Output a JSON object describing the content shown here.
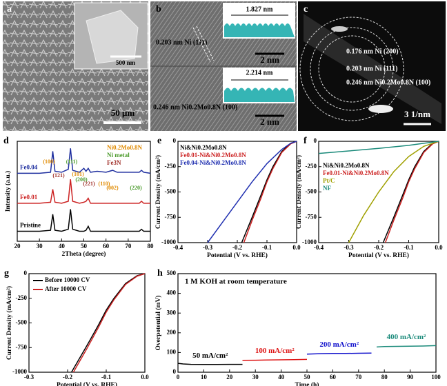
{
  "images": [
    {
      "label": "a",
      "texts": [
        "500 nm",
        "50 μm"
      ]
    },
    {
      "label": "b",
      "texts": [
        "1.827 nm",
        "0.203 nm Ni (111)",
        "2 nm",
        "2.214 nm",
        "0.246 nm Ni0.2Mo0.8N (100)",
        "2 nm"
      ]
    },
    {
      "label": "c",
      "texts": [
        "0.176 nm Ni (200)",
        "0.203 nm Ni (111)",
        "0.246 nm Ni0.2Mo0.8N (100)",
        "3 1/nm"
      ]
    }
  ],
  "chart_data": [
    {
      "type": "line",
      "label": "d",
      "xlabel": "2Theta (degree)",
      "ylabel": "Intensity (a.u.)",
      "xlim": [
        20,
        80
      ],
      "xticks": [
        20,
        30,
        40,
        50,
        60,
        70,
        80
      ],
      "ylim": [
        0,
        10
      ],
      "x": [
        20,
        30,
        35,
        36,
        37,
        40,
        43,
        44,
        45,
        48,
        50,
        51,
        52,
        53,
        56,
        60,
        63,
        65,
        70,
        75,
        76,
        77,
        80
      ],
      "series": [
        {
          "name": "Pristine",
          "color": "#000000",
          "values": [
            1.0,
            1.0,
            1.1,
            2.7,
            1.1,
            1.0,
            1.2,
            3.2,
            1.2,
            1.0,
            1.0,
            1.1,
            1.5,
            1.0,
            1.0,
            1.0,
            1.0,
            1.0,
            1.0,
            1.0,
            1.2,
            1.0,
            1.0
          ]
        },
        {
          "name": "Fe0.01",
          "color": "#cc2222",
          "values": [
            3.8,
            3.8,
            3.9,
            5.2,
            3.9,
            3.8,
            4.0,
            6.2,
            4.0,
            3.8,
            3.9,
            4.0,
            4.3,
            3.8,
            3.8,
            3.8,
            3.8,
            3.8,
            3.8,
            3.8,
            4.0,
            3.8,
            3.8
          ]
        },
        {
          "name": "Fe0.04",
          "color": "#1f2f9f",
          "values": [
            6.8,
            6.8,
            6.9,
            9.0,
            7.0,
            6.9,
            7.2,
            9.3,
            7.1,
            6.9,
            7.3,
            7.0,
            7.3,
            6.9,
            7.0,
            6.9,
            7.1,
            6.9,
            6.9,
            6.9,
            7.1,
            6.9,
            6.8
          ]
        }
      ],
      "phase_legend": [
        {
          "text": "Ni0.2Mo0.8N",
          "color": "#e08a00"
        },
        {
          "text": "Ni metal",
          "color": "#4a9a2a"
        },
        {
          "text": "Fe3N",
          "color": "#a0302a"
        }
      ],
      "peak_labels": [
        {
          "text": "(100)",
          "color": "#e08a00"
        },
        {
          "text": "(121)",
          "color": "#a0302a"
        },
        {
          "text": "(111)",
          "color": "#4a9a2a"
        },
        {
          "text": "(101)",
          "color": "#e08a00"
        },
        {
          "text": "(200)",
          "color": "#4a9a2a"
        },
        {
          "text": "(221)",
          "color": "#a0302a"
        },
        {
          "text": "(110)",
          "color": "#e08a00"
        },
        {
          "text": "(002)",
          "color": "#e08a00"
        },
        {
          "text": "(220)",
          "color": "#4a9a2a"
        }
      ]
    },
    {
      "type": "line",
      "label": "e",
      "xlabel": "Potential (V vs. RHE)",
      "ylabel": "Current Density (mA/cm²)",
      "xlim": [
        -0.4,
        0
      ],
      "xticks": [
        -0.4,
        -0.3,
        -0.2,
        -0.1,
        {
          "value": 0,
          "label": "0.0"
        }
      ],
      "ylim": [
        -1000,
        0
      ],
      "yticks": [
        -1000,
        -750,
        -500,
        -250,
        0
      ],
      "series": [
        {
          "name": "Ni&Ni0.2Mo0.8N",
          "color": "#000000",
          "x": [
            0,
            -0.02,
            -0.05,
            -0.08,
            -0.1,
            -0.12,
            -0.15,
            -0.185
          ],
          "values": [
            0,
            -20,
            -100,
            -250,
            -380,
            -530,
            -750,
            -1000
          ]
        },
        {
          "name": "Fe0.01-Ni&Ni0.2Mo0.8N",
          "color": "#cc2222",
          "x": [
            0,
            -0.02,
            -0.05,
            -0.08,
            -0.1,
            -0.12,
            -0.15,
            -0.178
          ],
          "values": [
            0,
            -25,
            -110,
            -270,
            -400,
            -560,
            -780,
            -1000
          ]
        },
        {
          "name": "Fe0.04-Ni&Ni0.2Mo0.8N",
          "color": "#1f2fb0",
          "x": [
            0,
            -0.02,
            -0.05,
            -0.1,
            -0.15,
            -0.2,
            -0.25,
            -0.3
          ],
          "values": [
            0,
            -20,
            -80,
            -220,
            -400,
            -600,
            -800,
            -1000
          ]
        }
      ]
    },
    {
      "type": "line",
      "label": "f",
      "xlabel": "Potential (V vs. RHE)",
      "ylabel": "Current Density (mA/cm²)",
      "xlim": [
        -0.4,
        0
      ],
      "xticks": [
        -0.4,
        -0.3,
        -0.2,
        -0.1,
        {
          "value": 0,
          "label": "0.0"
        }
      ],
      "ylim": [
        -1000,
        0
      ],
      "yticks": [
        -1000,
        -750,
        -500,
        -250,
        0
      ],
      "series": [
        {
          "name": "Ni&Ni0.2Mo0.8N",
          "color": "#000000",
          "x": [
            0,
            -0.02,
            -0.05,
            -0.08,
            -0.1,
            -0.12,
            -0.15,
            -0.185
          ],
          "values": [
            0,
            -20,
            -100,
            -250,
            -380,
            -530,
            -750,
            -1000
          ]
        },
        {
          "name": "Fe0.01-Ni&Ni0.2Mo0.8N",
          "color": "#cc2222",
          "x": [
            0,
            -0.02,
            -0.05,
            -0.08,
            -0.1,
            -0.12,
            -0.15,
            -0.178
          ],
          "values": [
            0,
            -25,
            -110,
            -270,
            -400,
            -560,
            -780,
            -1000
          ]
        },
        {
          "name": "Pt/C",
          "color": "#a0a000",
          "x": [
            0,
            -0.05,
            -0.1,
            -0.15,
            -0.2,
            -0.25,
            -0.3
          ],
          "values": [
            0,
            -50,
            -150,
            -300,
            -500,
            -730,
            -1000
          ]
        },
        {
          "name": "NF",
          "color": "#1a8a7a",
          "x": [
            0,
            -0.05,
            -0.1,
            -0.2,
            -0.3,
            -0.4
          ],
          "values": [
            0,
            -20,
            -40,
            -70,
            -95,
            -120
          ]
        }
      ]
    },
    {
      "type": "line",
      "label": "g",
      "xlabel": "Potential (V vs. RHE)",
      "ylabel": "Current Density (mA/cm²)",
      "xlim": [
        -0.3,
        0
      ],
      "xticks": [
        -0.3,
        -0.2,
        -0.1,
        {
          "value": 0,
          "label": "0.0"
        }
      ],
      "ylim": [
        -1000,
        0
      ],
      "yticks": [
        -1000,
        -750,
        -500,
        -250,
        0
      ],
      "series": [
        {
          "name": "Before 10000 CV",
          "color": "#000000",
          "x": [
            0,
            -0.02,
            -0.05,
            -0.08,
            -0.1,
            -0.12,
            -0.15,
            -0.19
          ],
          "values": [
            0,
            -20,
            -100,
            -250,
            -370,
            -520,
            -730,
            -1000
          ]
        },
        {
          "name": "After 10000 CV",
          "color": "#cc2222",
          "x": [
            0,
            -0.02,
            -0.05,
            -0.08,
            -0.1,
            -0.12,
            -0.15,
            -0.185
          ],
          "values": [
            0,
            -25,
            -110,
            -265,
            -390,
            -545,
            -760,
            -1000
          ]
        }
      ]
    },
    {
      "type": "line",
      "label": "h",
      "xlabel": "Time (h)",
      "ylabel": "Overpotential (mV)",
      "title": "1 M KOH at room temperature",
      "xlim": [
        0,
        100
      ],
      "xticks": [
        0,
        10,
        20,
        30,
        40,
        50,
        60,
        70,
        80,
        90,
        100
      ],
      "ylim": [
        0,
        500
      ],
      "yticks": [
        0,
        100,
        200,
        300,
        400,
        500
      ],
      "series": [
        {
          "name": "50 mA/cm²",
          "color": "#000000",
          "x": [
            0,
            2,
            5,
            10,
            15,
            20,
            25
          ],
          "values": [
            45,
            42,
            40,
            39,
            39,
            40,
            40
          ]
        },
        {
          "name": "100 mA/cm²",
          "color": "#dd1111",
          "x": [
            25,
            30,
            35,
            40,
            45,
            50
          ],
          "values": [
            60,
            61,
            62,
            63,
            64,
            65
          ]
        },
        {
          "name": "200 mA/cm²",
          "color": "#1111cc",
          "x": [
            50,
            55,
            60,
            65,
            70,
            75
          ],
          "values": [
            92,
            94,
            95,
            95,
            96,
            97
          ]
        },
        {
          "name": "400 mA/cm²",
          "color": "#1a8a7a",
          "x": [
            77,
            80,
            85,
            90,
            95,
            100
          ],
          "values": [
            128,
            130,
            131,
            132,
            133,
            135
          ]
        }
      ]
    }
  ]
}
